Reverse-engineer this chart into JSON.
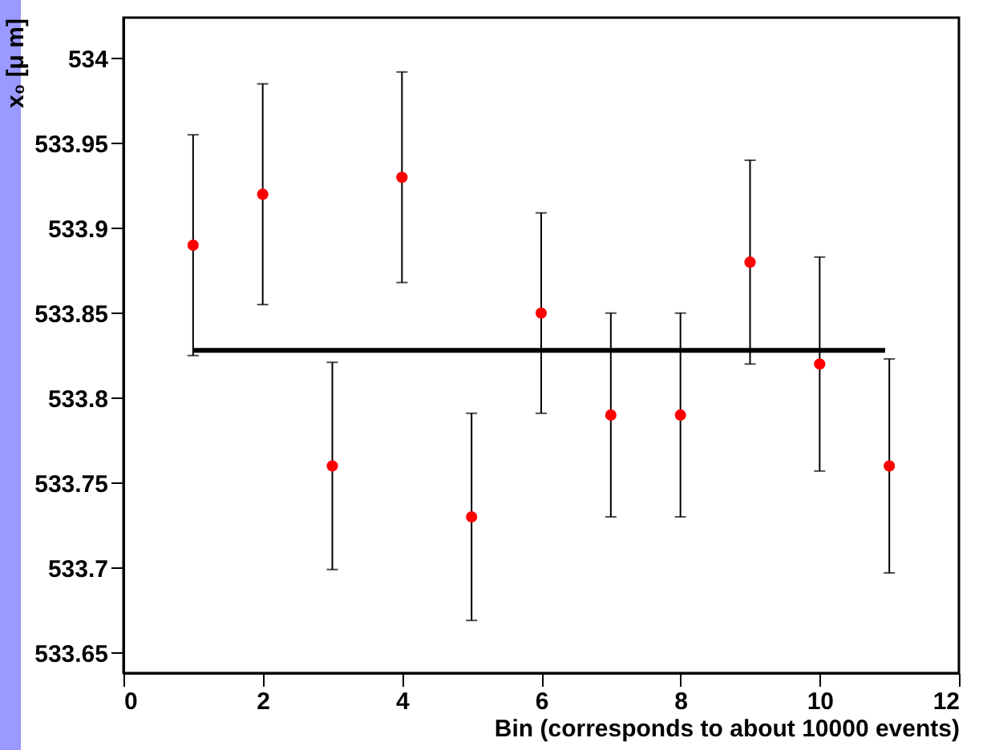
{
  "chart_data": {
    "type": "scatter",
    "xlabel": "Bin (corresponds to about 10000 events)",
    "ylabel": "x₀ [μ m]",
    "xlim": [
      0,
      12
    ],
    "xticks": [
      0,
      2,
      4,
      6,
      8,
      10,
      12
    ],
    "ylim": [
      533.638,
      534.024
    ],
    "yticks": [
      533.65,
      533.7,
      533.75,
      533.8,
      533.85,
      533.9,
      533.95,
      534
    ],
    "grid": false,
    "marker": "circle",
    "series": [
      {
        "color": "#ff0000",
        "x": [
          1,
          2,
          3,
          4,
          5,
          6,
          7,
          8,
          9,
          10,
          11
        ],
        "values": [
          533.89,
          533.92,
          533.76,
          533.93,
          533.73,
          533.85,
          533.79,
          533.79,
          533.88,
          533.82,
          533.76
        ],
        "errors": [
          0.065,
          0.065,
          0.061,
          0.062,
          0.061,
          0.059,
          0.06,
          0.06,
          0.06,
          0.063,
          0.063
        ]
      },
      {
        "type": "line",
        "color": "#000000",
        "line_style": "solid",
        "marker": "none",
        "x": [
          1,
          10.94
        ],
        "values": [
          533.828,
          533.828
        ]
      }
    ]
  }
}
